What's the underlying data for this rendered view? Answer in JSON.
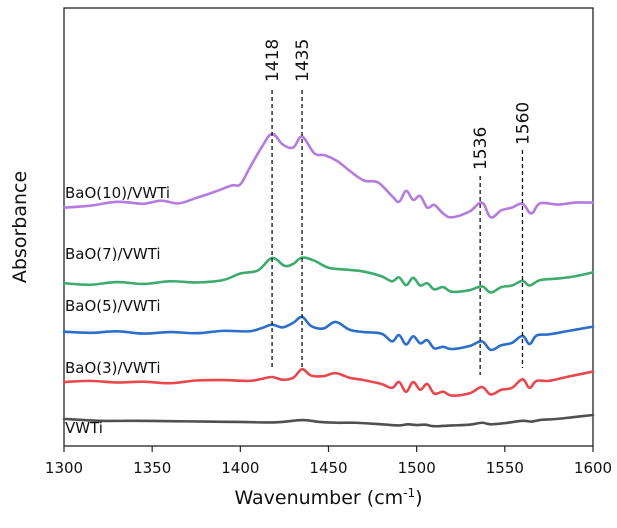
{
  "chart_data": {
    "type": "line",
    "xlabel": "Wavenumber (cm",
    "xlabel_sup": "-1",
    "xlabel_end": ")",
    "ylabel": "Absorbance",
    "xlim": [
      1300,
      1600
    ],
    "x_ticks": [
      "1300",
      "1350",
      "1400",
      "1450",
      "1500",
      "1550",
      "1600"
    ],
    "y_ticks": "none",
    "grid": false,
    "legend": "none",
    "peak_markers": [
      {
        "label": "1418",
        "x": 1418
      },
      {
        "label": "1435",
        "x": 1435
      },
      {
        "label": "1536",
        "x": 1536
      },
      {
        "label": "1560",
        "x": 1560
      }
    ],
    "series": [
      {
        "name": "VWTi",
        "color": "#505050",
        "x": [
          1300,
          1320,
          1340,
          1360,
          1380,
          1400,
          1420,
          1435,
          1445,
          1455,
          1465,
          1480,
          1490,
          1495,
          1500,
          1505,
          1510,
          1520,
          1530,
          1537,
          1542,
          1550,
          1560,
          1565,
          1570,
          1580,
          1590,
          1600
        ],
        "y": [
          2.0,
          1.5,
          1.5,
          1.4,
          1.3,
          1.2,
          1.1,
          1.7,
          1.2,
          1.0,
          1.0,
          0.6,
          0.3,
          0.6,
          0.4,
          0.5,
          0.1,
          0.3,
          0.5,
          1.0,
          0.6,
          0.9,
          1.5,
          1.3,
          1.7,
          2.0,
          2.5,
          3.0
        ]
      },
      {
        "name": "BaO(3)/VWTi",
        "color": "#e8474c",
        "x": [
          1300,
          1315,
          1330,
          1345,
          1360,
          1375,
          1390,
          1405,
          1412,
          1418,
          1424,
          1430,
          1435,
          1440,
          1447,
          1454,
          1462,
          1470,
          1480,
          1486,
          1490,
          1494,
          1498,
          1502,
          1506,
          1510,
          1515,
          1520,
          1530,
          1537,
          1542,
          1548,
          1554,
          1560,
          1564,
          1568,
          1575,
          1585,
          1600
        ],
        "y": [
          11.5,
          11.8,
          11.4,
          11.6,
          11.2,
          11.9,
          12.0,
          11.8,
          12.3,
          12.8,
          12.1,
          12.6,
          14.8,
          13.2,
          13.0,
          13.8,
          12.6,
          12.0,
          11.0,
          10.0,
          11.5,
          9.0,
          11.5,
          9.5,
          11.0,
          8.5,
          9.0,
          8.0,
          8.6,
          10.2,
          8.3,
          9.5,
          10.0,
          12.2,
          10.0,
          11.8,
          11.8,
          12.8,
          14.2
        ]
      },
      {
        "name": "BaO(5)/VWTi",
        "color": "#2c6fca",
        "x": [
          1300,
          1315,
          1330,
          1345,
          1360,
          1375,
          1390,
          1405,
          1412,
          1418,
          1424,
          1430,
          1435,
          1440,
          1447,
          1454,
          1462,
          1470,
          1480,
          1486,
          1490,
          1494,
          1498,
          1502,
          1506,
          1510,
          1515,
          1520,
          1530,
          1537,
          1542,
          1548,
          1554,
          1560,
          1564,
          1568,
          1575,
          1585,
          1600
        ],
        "y": [
          24.5,
          24.2,
          24.6,
          24.0,
          24.4,
          24.1,
          24.7,
          24.6,
          25.4,
          26.3,
          25.6,
          26.8,
          28.3,
          26.0,
          25.3,
          27.0,
          25.0,
          24.4,
          24.0,
          22.0,
          23.6,
          21.2,
          23.3,
          21.5,
          22.3,
          20.2,
          20.6,
          20.0,
          20.8,
          22.0,
          19.8,
          21.0,
          21.6,
          23.4,
          21.3,
          23.5,
          23.8,
          24.6,
          25.8
        ]
      },
      {
        "name": "BaO(7)/VWTi",
        "color": "#3dab6e",
        "x": [
          1300,
          1315,
          1330,
          1345,
          1360,
          1375,
          1390,
          1400,
          1410,
          1418,
          1425,
          1430,
          1435,
          1442,
          1450,
          1460,
          1470,
          1480,
          1486,
          1490,
          1494,
          1498,
          1502,
          1506,
          1510,
          1515,
          1520,
          1530,
          1537,
          1542,
          1548,
          1554,
          1560,
          1564,
          1570,
          1580,
          1590,
          1600
        ],
        "y": [
          37.0,
          36.6,
          37.3,
          36.8,
          37.5,
          37.2,
          37.8,
          39.5,
          40.3,
          43.5,
          41.5,
          42.0,
          43.6,
          42.8,
          41.0,
          40.5,
          40.0,
          38.8,
          37.5,
          38.5,
          36.5,
          38.4,
          36.4,
          37.0,
          35.4,
          36.0,
          34.8,
          35.2,
          36.2,
          34.6,
          36.0,
          36.4,
          37.6,
          36.4,
          37.8,
          38.2,
          38.8,
          39.8
        ]
      },
      {
        "name": "BaO(10)/VWTi",
        "color": "#b57ce0",
        "x": [
          1300,
          1315,
          1330,
          1345,
          1355,
          1365,
          1375,
          1385,
          1395,
          1400,
          1405,
          1412,
          1418,
          1424,
          1430,
          1435,
          1442,
          1448,
          1455,
          1462,
          1470,
          1478,
          1486,
          1490,
          1494,
          1498,
          1502,
          1506,
          1510,
          1515,
          1520,
          1530,
          1537,
          1542,
          1548,
          1554,
          1560,
          1565,
          1570,
          1580,
          1590,
          1600
        ],
        "y": [
          56.5,
          57.0,
          58.0,
          57.5,
          58.3,
          57.6,
          59.0,
          60.5,
          62.2,
          62.5,
          66.5,
          72.0,
          75.5,
          72.8,
          72.0,
          74.8,
          70.5,
          70.0,
          68.5,
          66.0,
          63.5,
          63.0,
          59.5,
          58.0,
          60.8,
          58.5,
          59.5,
          56.5,
          57.2,
          55.0,
          54.0,
          55.5,
          57.8,
          54.0,
          55.8,
          56.5,
          57.5,
          55.0,
          57.6,
          57.3,
          57.8,
          57.8
        ]
      }
    ]
  },
  "series_labels": [
    "BaO(10)/VWTi",
    "BaO(7)/VWTi",
    "BaO(5)/VWTi",
    "BaO(3)/VWTi",
    "VWTi"
  ]
}
